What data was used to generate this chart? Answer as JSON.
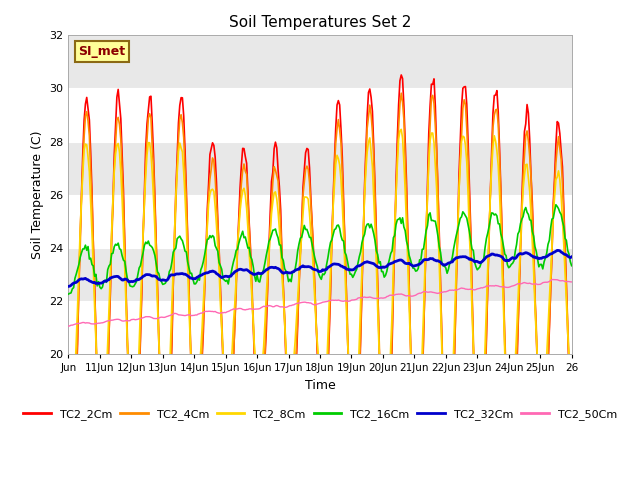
{
  "title": "Soil Temperatures Set 2",
  "xlabel": "Time",
  "ylabel": "Soil Temperature (C)",
  "ylim": [
    20,
    32
  ],
  "xlim": [
    0,
    384
  ],
  "yticks": [
    20,
    22,
    24,
    26,
    28,
    30,
    32
  ],
  "xtick_labels": [
    "Jun",
    "11Jun",
    "12Jun",
    "13Jun",
    "14Jun",
    "15Jun",
    "16Jun",
    "17Jun",
    "18Jun",
    "19Jun",
    "20Jun",
    "21Jun",
    "22Jun",
    "23Jun",
    "24Jun",
    "25Jun",
    "26"
  ],
  "xtick_positions": [
    0,
    24,
    48,
    72,
    96,
    120,
    144,
    168,
    192,
    216,
    240,
    264,
    288,
    312,
    336,
    360,
    384
  ],
  "annotation_text": "SI_met",
  "annotation_color": "#8B0000",
  "annotation_bg": "#FFFF99",
  "annotation_border": "#8B6914",
  "line_colors": {
    "TC2_2Cm": "#FF0000",
    "TC2_4Cm": "#FF8C00",
    "TC2_8Cm": "#FFD700",
    "TC2_16Cm": "#00CC00",
    "TC2_32Cm": "#0000CC",
    "TC2_50Cm": "#FF69B4"
  },
  "line_widths": {
    "TC2_2Cm": 1.2,
    "TC2_4Cm": 1.2,
    "TC2_8Cm": 1.2,
    "TC2_16Cm": 1.2,
    "TC2_32Cm": 2.0,
    "TC2_50Cm": 1.0
  },
  "bg_color": "#E8E8E8",
  "white_band_color": "#FFFFFF",
  "fig_bg": "#FFFFFF"
}
